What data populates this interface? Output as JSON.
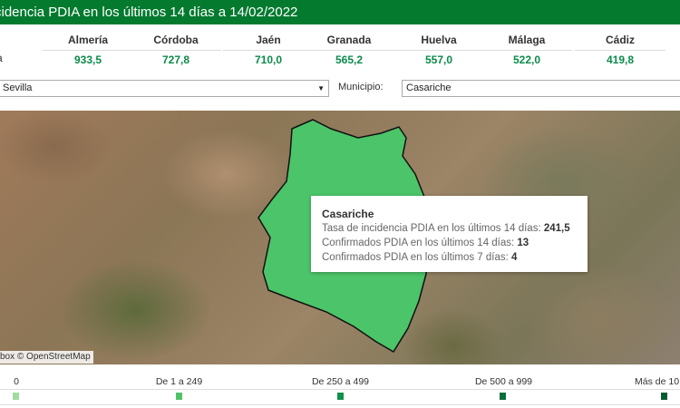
{
  "header": {
    "title": "cidencia PDIA en los últimos 14 días a 14/02/2022"
  },
  "provinces": {
    "row_label": "a",
    "items": [
      {
        "name": "Almería",
        "value": "933,5"
      },
      {
        "name": "Córdoba",
        "value": "727,8"
      },
      {
        "name": "Jaén",
        "value": "710,0"
      },
      {
        "name": "Granada",
        "value": "565,2"
      },
      {
        "name": "Huelva",
        "value": "557,0"
      },
      {
        "name": "Málaga",
        "value": "522,0"
      },
      {
        "name": "Cádiz",
        "value": "419,8"
      }
    ]
  },
  "filters": {
    "province_value": "Sevilla",
    "municipio_label": "Municipio:",
    "municipio_value": "Casariche"
  },
  "map": {
    "attribution": "box © OpenStreetMap",
    "highlight_color": "#4cc469"
  },
  "tooltip": {
    "name": "Casariche",
    "rows": [
      {
        "label": "Tasa de incidencia PDIA en los últimos 14 días: ",
        "value": "241,5"
      },
      {
        "label": "Confirmados PDIA en los últimos 14 días: ",
        "value": "13"
      },
      {
        "label": "Confirmados PDIA en los últimos 7 días: ",
        "value": "4"
      }
    ]
  },
  "legend": [
    {
      "label": "0",
      "color": "#9fdc9f"
    },
    {
      "label": "De 1 a 249",
      "color": "#52c26a"
    },
    {
      "label": "De 250 a 499",
      "color": "#12904a"
    },
    {
      "label": "De 500 a 999",
      "color": "#0b6e3c"
    },
    {
      "label": "Más de 10",
      "color": "#085c31"
    }
  ]
}
